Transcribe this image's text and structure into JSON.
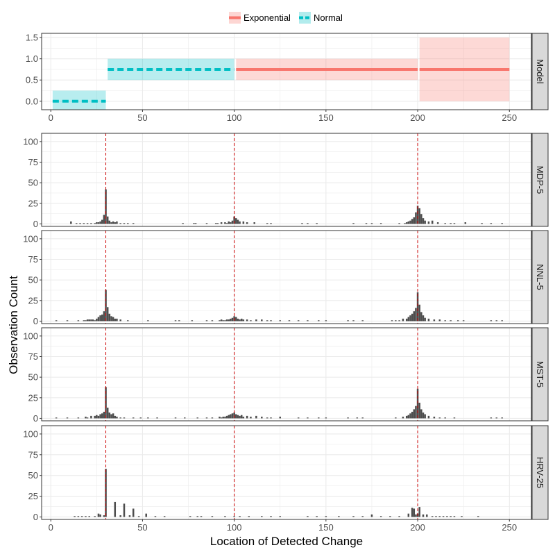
{
  "chart_data": {
    "type": "bar",
    "xlabel": "Location of Detected Change",
    "ylabel": "Observation Count",
    "xlim": [
      -5,
      262
    ],
    "x_ticks": [
      0,
      50,
      100,
      150,
      200,
      250
    ],
    "grid": true,
    "legend_position": "top",
    "colors": {
      "exponential": "#F8766D",
      "normal": "#00BFC4",
      "bars": "#4d4d4d",
      "vline": "#cc0000",
      "strip_bg": "#d9d9d9",
      "grid": "#ebebeb"
    },
    "legend": [
      {
        "name": "Exponential",
        "color": "#F8766D",
        "linetype": "solid"
      },
      {
        "name": "Normal",
        "color": "#00BFC4",
        "linetype": "dashed"
      }
    ],
    "change_points": [
      30,
      100,
      200
    ],
    "model_panel": {
      "strip_label": "Model",
      "ylim": [
        -0.2,
        1.6
      ],
      "y_ticks": [
        "0.0",
        "0.5",
        "1.0",
        "1.5"
      ],
      "y_tick_values": [
        0,
        0.5,
        1.0,
        1.5
      ],
      "segments": [
        {
          "distribution": "Normal",
          "start": 1,
          "end": 30,
          "mean": 0,
          "lower": -0.25,
          "upper": 0.25
        },
        {
          "distribution": "Normal",
          "start": 31,
          "end": 100,
          "mean": 0.75,
          "lower": 0.5,
          "upper": 1.0
        },
        {
          "distribution": "Exponential",
          "start": 101,
          "end": 200,
          "mean": 0.75,
          "lower": 0.5,
          "upper": 1.0
        },
        {
          "distribution": "Exponential",
          "start": 201,
          "end": 250,
          "mean": 0.75,
          "lower": 0.0,
          "upper": 1.5
        }
      ]
    },
    "histogram_panels": [
      {
        "strip_label": "MDP-5",
        "ylim": [
          -3,
          110
        ],
        "y_ticks": [
          "0",
          "25",
          "50",
          "75",
          "100"
        ],
        "y_tick_values": [
          0,
          25,
          50,
          75,
          100
        ],
        "x": [
          11,
          14,
          16,
          18,
          20,
          22,
          24,
          25,
          26,
          27,
          28,
          29,
          30,
          31,
          32,
          33,
          34,
          35,
          36,
          38,
          40,
          42,
          45,
          72,
          78,
          79,
          85,
          90,
          91,
          93,
          95,
          96,
          97,
          98,
          99,
          100,
          101,
          102,
          103,
          105,
          107,
          111,
          118,
          120,
          137,
          140,
          145,
          165,
          172,
          175,
          180,
          190,
          193,
          194,
          195,
          196,
          197,
          198,
          199,
          200,
          201,
          202,
          203,
          204,
          206,
          208,
          211,
          215,
          218,
          220,
          226,
          235,
          240,
          246
        ],
        "values": [
          3,
          1,
          1,
          1,
          1,
          1,
          1,
          2,
          2,
          3,
          5,
          11,
          42,
          9,
          4,
          2,
          3,
          2,
          3,
          1,
          1,
          1,
          1,
          1,
          1,
          1,
          1,
          1,
          1,
          2,
          2,
          1,
          3,
          2,
          4,
          9,
          7,
          5,
          3,
          3,
          2,
          2,
          1,
          1,
          1,
          1,
          1,
          1,
          1,
          1,
          1,
          1,
          1,
          2,
          3,
          4,
          6,
          8,
          14,
          22,
          19,
          12,
          7,
          4,
          3,
          4,
          2,
          1,
          1,
          1,
          2,
          1,
          1,
          1
        ]
      },
      {
        "strip_label": "NNL-5",
        "ylim": [
          -3,
          110
        ],
        "y_ticks": [
          "0",
          "25",
          "50",
          "75",
          "100"
        ],
        "y_tick_values": [
          0,
          25,
          50,
          75,
          100
        ],
        "x": [
          3,
          9,
          15,
          18,
          19,
          20,
          21,
          22,
          23,
          24,
          25,
          26,
          27,
          28,
          29,
          30,
          31,
          32,
          33,
          34,
          35,
          36,
          38,
          42,
          53,
          68,
          70,
          77,
          85,
          88,
          92,
          93,
          94,
          95,
          96,
          97,
          98,
          99,
          100,
          101,
          102,
          103,
          104,
          105,
          107,
          109,
          112,
          115,
          118,
          120,
          125,
          130,
          135,
          140,
          146,
          150,
          162,
          165,
          170,
          186,
          188,
          190,
          192,
          194,
          195,
          196,
          197,
          198,
          199,
          200,
          201,
          202,
          203,
          204,
          206,
          209,
          212,
          215,
          218,
          222,
          225,
          240,
          243,
          246
        ],
        "values": [
          1,
          1,
          1,
          1,
          1,
          2,
          2,
          2,
          2,
          1,
          3,
          5,
          7,
          8,
          12,
          38,
          17,
          9,
          6,
          5,
          3,
          3,
          2,
          1,
          1,
          1,
          1,
          1,
          1,
          1,
          1,
          2,
          1,
          1,
          2,
          2,
          3,
          4,
          6,
          5,
          3,
          2,
          3,
          2,
          2,
          1,
          2,
          2,
          1,
          1,
          1,
          1,
          1,
          1,
          1,
          1,
          1,
          1,
          1,
          1,
          1,
          1,
          3,
          3,
          5,
          7,
          9,
          12,
          16,
          35,
          20,
          11,
          7,
          4,
          3,
          2,
          2,
          1,
          1,
          1,
          1,
          1,
          1,
          1
        ]
      },
      {
        "strip_label": "MST-5",
        "ylim": [
          -3,
          110
        ],
        "y_ticks": [
          "0",
          "25",
          "50",
          "75",
          "100"
        ],
        "y_tick_values": [
          0,
          25,
          50,
          75,
          100
        ],
        "x": [
          3,
          9,
          15,
          19,
          20,
          22,
          24,
          25,
          26,
          27,
          28,
          29,
          30,
          31,
          32,
          33,
          34,
          35,
          36,
          38,
          40,
          45,
          49,
          53,
          58,
          68,
          73,
          80,
          85,
          88,
          92,
          93,
          94,
          95,
          96,
          97,
          98,
          99,
          100,
          101,
          102,
          103,
          104,
          105,
          107,
          109,
          112,
          115,
          118,
          120,
          125,
          135,
          140,
          146,
          150,
          162,
          167,
          170,
          188,
          192,
          194,
          195,
          196,
          197,
          198,
          199,
          200,
          201,
          202,
          203,
          204,
          206,
          209,
          212,
          215,
          220,
          240,
          243,
          246
        ],
        "values": [
          1,
          1,
          1,
          2,
          1,
          3,
          3,
          4,
          3,
          5,
          6,
          8,
          38,
          13,
          7,
          5,
          6,
          3,
          2,
          1,
          1,
          1,
          1,
          1,
          1,
          1,
          1,
          1,
          1,
          1,
          2,
          1,
          2,
          2,
          3,
          4,
          5,
          6,
          7,
          5,
          4,
          3,
          4,
          2,
          3,
          2,
          3,
          2,
          1,
          1,
          2,
          1,
          1,
          1,
          1,
          1,
          1,
          1,
          1,
          2,
          3,
          4,
          6,
          8,
          11,
          15,
          36,
          19,
          11,
          7,
          5,
          3,
          2,
          1,
          1,
          1,
          1,
          1,
          1
        ]
      },
      {
        "strip_label": "HRV-25",
        "ylim": [
          -3,
          110
        ],
        "y_ticks": [
          "0",
          "25",
          "50",
          "75",
          "100"
        ],
        "y_tick_values": [
          0,
          25,
          50,
          75,
          100
        ],
        "x": [
          13,
          15,
          17,
          19,
          21,
          24,
          26,
          27,
          29,
          30,
          35,
          38,
          40,
          43,
          45,
          48,
          52,
          57,
          62,
          76,
          80,
          82,
          88,
          95,
          100,
          103,
          108,
          115,
          120,
          125,
          140,
          145,
          150,
          157,
          165,
          170,
          175,
          180,
          185,
          190,
          195,
          197,
          198,
          199,
          200,
          201,
          203,
          205,
          208,
          210,
          212,
          214,
          216,
          218,
          220,
          224,
          233
        ],
        "values": [
          1,
          1,
          1,
          1,
          1,
          1,
          4,
          3,
          2,
          58,
          18,
          2,
          16,
          2,
          10,
          1,
          4,
          1,
          1,
          1,
          1,
          1,
          1,
          1,
          1,
          1,
          1,
          1,
          1,
          1,
          1,
          1,
          1,
          1,
          1,
          1,
          3,
          1,
          1,
          1,
          4,
          11,
          10,
          3,
          4,
          12,
          3,
          3,
          1,
          1,
          1,
          1,
          1,
          1,
          1,
          1,
          1
        ]
      }
    ]
  }
}
